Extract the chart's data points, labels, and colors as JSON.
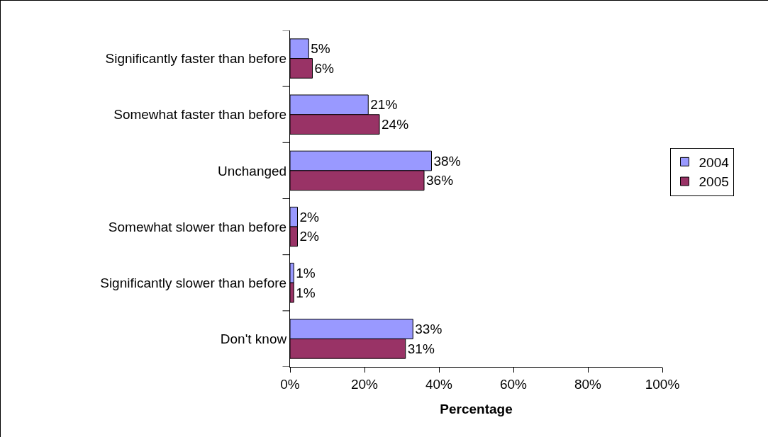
{
  "chart_data": {
    "type": "bar",
    "orientation": "horizontal",
    "xlabel": "Percentage",
    "categories": [
      "Significantly faster than before",
      "Somewhat faster than before",
      "Unchanged",
      "Somewhat slower than before",
      "Significantly slower than before",
      "Don't know"
    ],
    "series": [
      {
        "name": "2004",
        "color": "#9999ff",
        "values": [
          5,
          21,
          38,
          2,
          1,
          33
        ],
        "value_labels": [
          "5%",
          "21%",
          "38%",
          "2%",
          "1%",
          "33%"
        ]
      },
      {
        "name": "2005",
        "color": "#993366",
        "values": [
          6,
          24,
          36,
          2,
          1,
          31
        ],
        "value_labels": [
          "6%",
          "24%",
          "36%",
          "2%",
          "1%",
          "31%"
        ]
      }
    ],
    "xlim": [
      0,
      100
    ],
    "xticks": [
      {
        "value": 0,
        "label": "0%"
      },
      {
        "value": 20,
        "label": "20%"
      },
      {
        "value": 40,
        "label": "40%"
      },
      {
        "value": 60,
        "label": "60%"
      },
      {
        "value": 80,
        "label": "80%"
      },
      {
        "value": 100,
        "label": "100%"
      }
    ],
    "grid": false,
    "legend": "right"
  }
}
